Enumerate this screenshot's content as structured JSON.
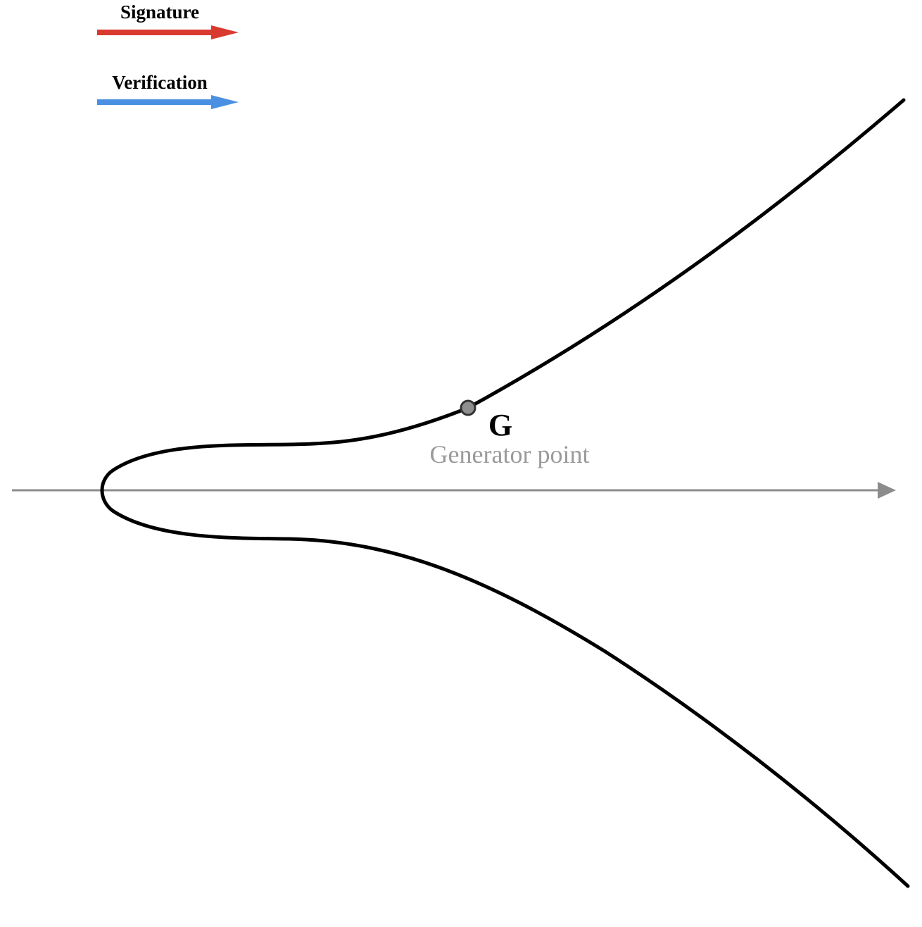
{
  "legend": {
    "items": [
      {
        "label": "Signature",
        "color": "#d93a2f"
      },
      {
        "label": "Verification",
        "color": "#4a90e2"
      }
    ]
  },
  "curve": {
    "color": "#000000",
    "axis_color": "#8c8c8c"
  },
  "generator": {
    "label": "G",
    "caption": "Generator point",
    "point_fill": "#8f8f8f",
    "point_stroke": "#333333"
  }
}
